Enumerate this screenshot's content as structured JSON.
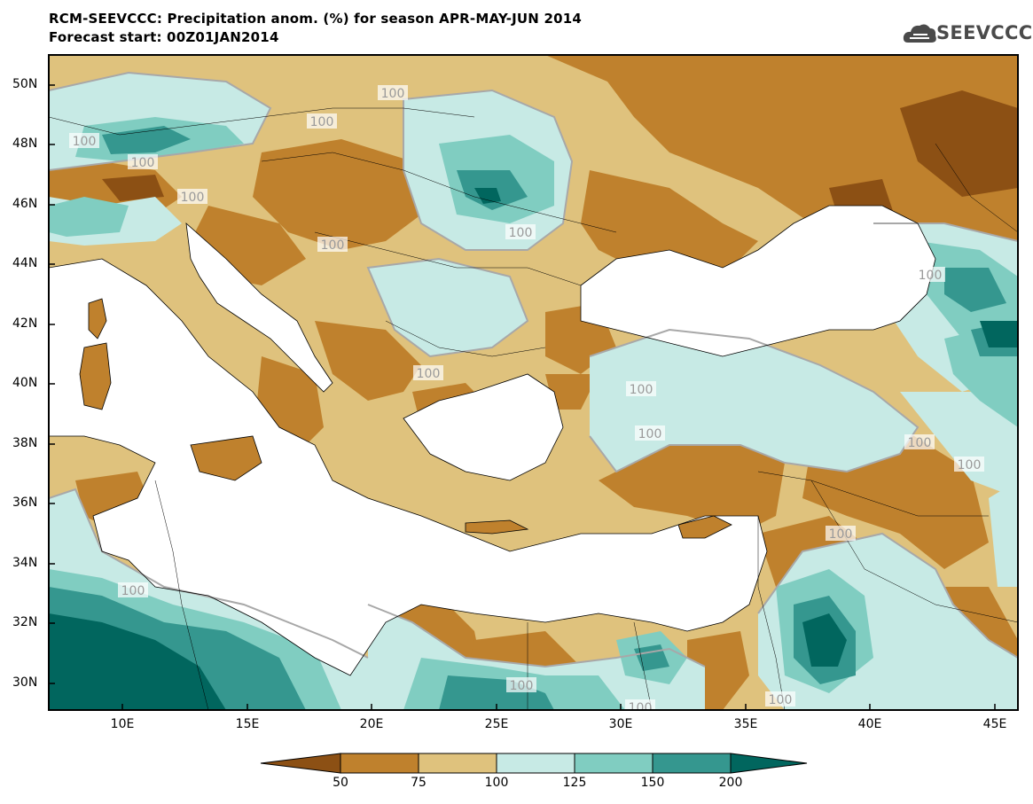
{
  "header": {
    "title_line1": "RCM-SEEVCCC: Precipitation anom. (%) for season APR-MAY-JUN 2014",
    "title_line2": "Forecast start: 00Z01JAN2014"
  },
  "logo": {
    "text": "SEEVCCC",
    "icon": "cloud-icon"
  },
  "map": {
    "lat_labels": [
      "50N",
      "48N",
      "46N",
      "44N",
      "42N",
      "40N",
      "38N",
      "36N",
      "34N",
      "32N",
      "30N"
    ],
    "lon_labels": [
      "10E",
      "15E",
      "20E",
      "25E",
      "30E",
      "35E",
      "40E",
      "45E"
    ],
    "contour_label": "100",
    "contour_labels": [
      "100",
      "100",
      "100",
      "100",
      "100",
      "100",
      "100",
      "100",
      "100",
      "100",
      "100",
      "100",
      "100",
      "100",
      "100",
      "100",
      "100",
      "100"
    ]
  },
  "colorbar": {
    "labels": [
      "50",
      "75",
      "100",
      "125",
      "150",
      "200"
    ],
    "colors": [
      "#8c5014",
      "#bf812d",
      "#dfc27d",
      "#c7eae5",
      "#80cdc1",
      "#35978f",
      "#01665e"
    ]
  }
}
